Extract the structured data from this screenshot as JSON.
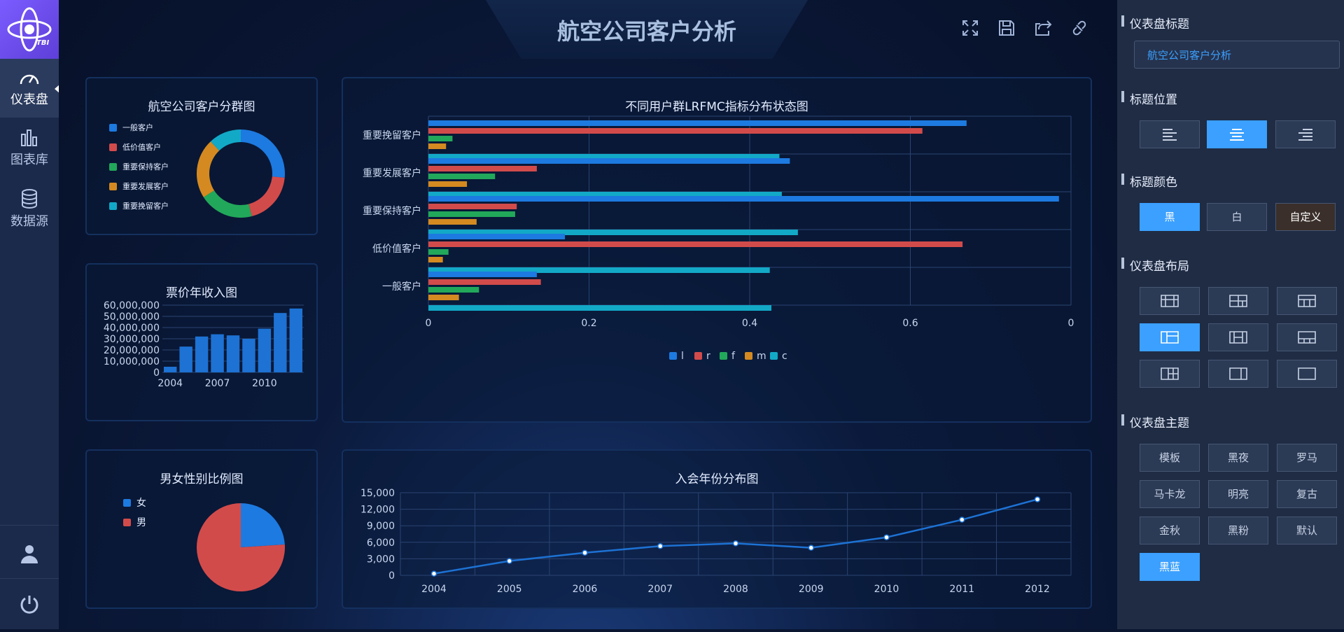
{
  "app": {
    "logo_text": "TBI"
  },
  "nav": {
    "items": [
      {
        "label": "仪表盘"
      },
      {
        "label": "图表库"
      },
      {
        "label": "数据源"
      }
    ]
  },
  "dashboard_title": "航空公司客户分析",
  "donut": {
    "title": "航空公司客户分群图",
    "legend": [
      {
        "name": "一般客户",
        "color": "#1d7ae0",
        "value": 0.265
      },
      {
        "name": "低价值客户",
        "color": "#d24b4b",
        "value": 0.195
      },
      {
        "name": "重要保持客户",
        "color": "#22a85a",
        "value": 0.2
      },
      {
        "name": "重要发展客户",
        "color": "#d48a20",
        "value": 0.22
      },
      {
        "name": "重要挽留客户",
        "color": "#12a9c7",
        "value": 0.12
      }
    ]
  },
  "bar": {
    "title": "票价年收入图",
    "yticks": [
      "60,000,000",
      "50,000,000",
      "40,000,000",
      "30,000,000",
      "20,000,000",
      "10,000,000",
      "0"
    ],
    "xticks": [
      "2004",
      "2007",
      "2010"
    ],
    "values": [
      5000000,
      23000000,
      32000000,
      34000000,
      33000000,
      30000000,
      39000000,
      53000000,
      57000000
    ],
    "ymax": 60000000
  },
  "pie": {
    "title": "男女性别比例图",
    "legend": [
      {
        "name": "女",
        "color": "#1d7ae0",
        "value": 0.24
      },
      {
        "name": "男",
        "color": "#d24b4b",
        "value": 0.76
      }
    ]
  },
  "hbar": {
    "title": "不同用户群LRFMC指标分布状态图",
    "categories": [
      "重要挽留客户",
      "重要发展客户",
      "重要保持客户",
      "低价值客户",
      "一般客户"
    ],
    "xticks": [
      "0",
      "0.2",
      "0.4",
      "0.6",
      "0"
    ],
    "xmax": 0.8,
    "series": [
      {
        "name": "l",
        "color": "#1d7ae0",
        "values": [
          0.67,
          0.45,
          0.785,
          0.17,
          0.135
        ]
      },
      {
        "name": "r",
        "color": "#d24b4b",
        "values": [
          0.615,
          0.135,
          0.11,
          0.665,
          0.14
        ]
      },
      {
        "name": "f",
        "color": "#22a85a",
        "values": [
          0.03,
          0.083,
          0.108,
          0.025,
          0.063
        ]
      },
      {
        "name": "m",
        "color": "#d48a20",
        "values": [
          0.022,
          0.048,
          0.06,
          0.018,
          0.038
        ]
      },
      {
        "name": "c",
        "color": "#12a9c7",
        "values": [
          0.437,
          0.44,
          0.46,
          0.425,
          0.427
        ]
      }
    ]
  },
  "line": {
    "title": "入会年份分布图",
    "years": [
      "2004",
      "2005",
      "2006",
      "2007",
      "2008",
      "2009",
      "2010",
      "2011",
      "2012"
    ],
    "values": [
      300,
      2600,
      4100,
      5300,
      5800,
      5000,
      6900,
      10100,
      13800
    ],
    "yticks": [
      "15,000",
      "12,000",
      "9,000",
      "6,000",
      "3,000",
      "0"
    ],
    "ymax": 15000
  },
  "right": {
    "title_label": "仪表盘标题",
    "title_value": "航空公司客户分析",
    "pos_label": "标题位置",
    "color_label": "标题颜色",
    "colors": [
      "黑",
      "白",
      "自定义"
    ],
    "layout_label": "仪表盘布局",
    "theme_label": "仪表盘主题",
    "themes": [
      "模板",
      "黑夜",
      "罗马",
      "马卡龙",
      "明亮",
      "复古",
      "金秋",
      "黑粉",
      "默认",
      "黑蓝"
    ]
  }
}
